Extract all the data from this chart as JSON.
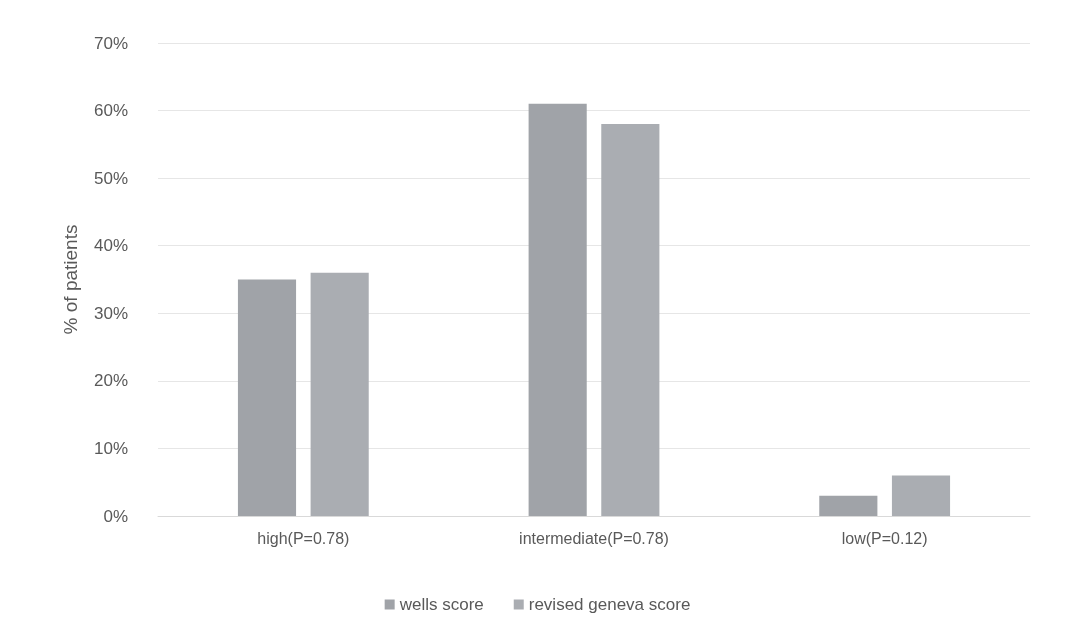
{
  "chart_data": {
    "type": "bar",
    "ylabel": "% of patients",
    "categories": [
      "high(P=0.78)",
      "intermediate(P=0.78)",
      "low(P=0.12)"
    ],
    "series": [
      {
        "name": "wells score",
        "color": "#a0a3a8",
        "values": [
          35,
          61,
          3
        ]
      },
      {
        "name": "revised geneva score",
        "color": "#aaadb2",
        "values": [
          36,
          58,
          6
        ]
      }
    ],
    "ylim": [
      0,
      70
    ],
    "yticks": [
      {
        "value": 0,
        "label": "0%"
      },
      {
        "value": 10,
        "label": "10%"
      },
      {
        "value": 20,
        "label": "20%"
      },
      {
        "value": 30,
        "label": "30%"
      },
      {
        "value": 40,
        "label": "40%"
      },
      {
        "value": 50,
        "label": "50%"
      },
      {
        "value": 60,
        "label": "60%"
      },
      {
        "value": 70,
        "label": "70%"
      }
    ],
    "grid": "y",
    "legend": "bottom"
  }
}
